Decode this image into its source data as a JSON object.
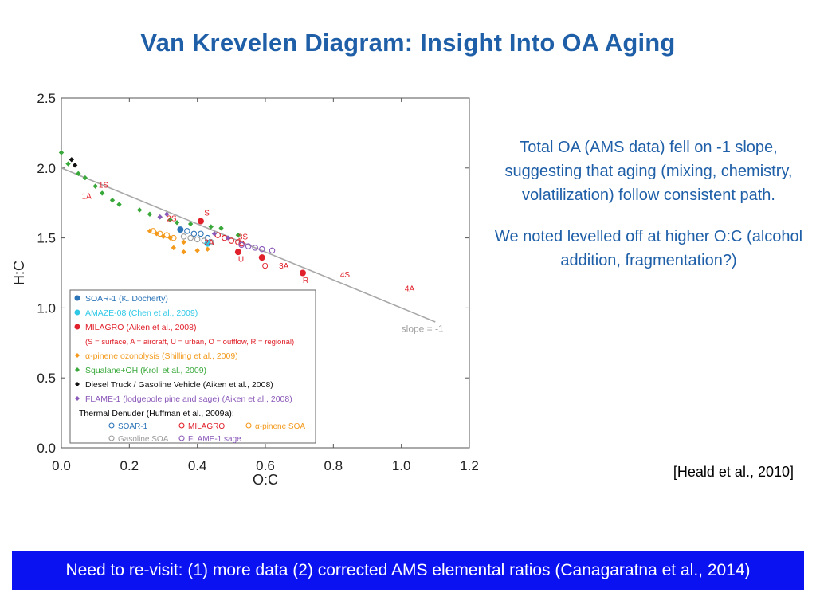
{
  "slide": {
    "title": "Van Krevelen Diagram: Insight Into OA Aging",
    "notes": [
      "Total OA (AMS data) fell on -1 slope, suggesting that aging (mixing, chemistry, volatilization) follow consistent path.",
      "We noted levelled off at higher O:C (alcohol addition, fragmentation?)"
    ],
    "citation": "[Heald et al., 2010]",
    "banner": "Need to re-visit: (1) more data (2) corrected AMS elemental ratios (Canagaratna et al., 2014)"
  },
  "chart_data": {
    "type": "scatter",
    "xlabel": "O:C",
    "ylabel": "H:C",
    "xlim": [
      0.0,
      1.2
    ],
    "ylim": [
      0.0,
      2.5
    ],
    "x_ticks": [
      "0.0",
      "0.2",
      "0.4",
      "0.6",
      "0.8",
      "1.0",
      "1.2"
    ],
    "y_ticks": [
      "0.0",
      "0.5",
      "1.0",
      "1.5",
      "2.0",
      "2.5"
    ],
    "reference_line": {
      "label": "slope = -1",
      "from": [
        0.0,
        2.0
      ],
      "to": [
        1.1,
        0.9
      ],
      "color": "#a8a8a8"
    },
    "legend_position": "bottom-left",
    "series": [
      {
        "name": "SOAR-1 (K. Docherty)",
        "color": "#2c74b8",
        "marker": "filled-circle",
        "points": [
          [
            0.35,
            1.56
          ]
        ]
      },
      {
        "name": "AMAZE-08 (Chen et al., 2009)",
        "color": "#2ec8e6",
        "marker": "filled-circle",
        "points": [
          [
            0.43,
            1.46
          ]
        ]
      },
      {
        "name": "MILAGRO (Aiken et al., 2008)",
        "color": "#e0202a",
        "marker": "filled-circle",
        "points": [
          [
            0.41,
            1.62
          ],
          [
            0.52,
            1.4
          ],
          [
            0.59,
            1.36
          ],
          [
            0.71,
            1.25
          ]
        ]
      },
      {
        "name": "(S = surface, A = aircraft, U = urban, O = outflow, R = regional)",
        "color": "#e0202a",
        "marker": "none",
        "points": []
      },
      {
        "name": "α-pinene ozonolysis (Shilling et al., 2009)",
        "color": "#f39a1c",
        "marker": "filled-diamond",
        "points": [
          [
            0.26,
            1.55
          ],
          [
            0.28,
            1.53
          ],
          [
            0.3,
            1.51
          ],
          [
            0.32,
            1.5
          ],
          [
            0.36,
            1.47
          ],
          [
            0.33,
            1.43
          ],
          [
            0.36,
            1.4
          ],
          [
            0.4,
            1.41
          ],
          [
            0.43,
            1.42
          ]
        ]
      },
      {
        "name": "Squalane+OH (Kroll et al., 2009)",
        "color": "#39a83a",
        "marker": "filled-diamond",
        "points": [
          [
            0.0,
            2.11
          ],
          [
            0.02,
            2.03
          ],
          [
            0.05,
            1.96
          ],
          [
            0.07,
            1.93
          ],
          [
            0.1,
            1.87
          ],
          [
            0.12,
            1.82
          ],
          [
            0.15,
            1.77
          ],
          [
            0.17,
            1.74
          ],
          [
            0.23,
            1.7
          ],
          [
            0.26,
            1.67
          ],
          [
            0.29,
            1.65
          ],
          [
            0.32,
            1.63
          ],
          [
            0.34,
            1.61
          ],
          [
            0.38,
            1.6
          ],
          [
            0.44,
            1.58
          ],
          [
            0.47,
            1.57
          ],
          [
            0.52,
            1.52
          ]
        ]
      },
      {
        "name": "Diesel Truck / Gasoline Vehicle (Aiken et al., 2008)",
        "color": "#111111",
        "marker": "filled-diamond",
        "points": [
          [
            0.03,
            2.06
          ],
          [
            0.04,
            2.02
          ]
        ]
      },
      {
        "name": "FLAME-1 (lodgepole pine and sage) (Aiken et al., 2008)",
        "color": "#8a58b8",
        "marker": "filled-diamond",
        "points": [
          [
            0.29,
            1.65
          ],
          [
            0.31,
            1.67
          ],
          [
            0.45,
            1.53
          ],
          [
            0.49,
            1.5
          ]
        ]
      },
      {
        "name": "Thermal Denuder (Huffman et al., 2009a):",
        "color": "#000000",
        "marker": "none",
        "points": []
      }
    ],
    "thermal_denuder": [
      {
        "name": "SOAR-1",
        "color": "#2c74b8",
        "marker": "open-circle",
        "points": [
          [
            0.37,
            1.55
          ],
          [
            0.39,
            1.53
          ],
          [
            0.41,
            1.53
          ],
          [
            0.43,
            1.5
          ],
          [
            0.44,
            1.47
          ]
        ]
      },
      {
        "name": "MILAGRO",
        "color": "#e0202a",
        "marker": "open-circle",
        "points": [
          [
            0.46,
            1.52
          ],
          [
            0.48,
            1.5
          ],
          [
            0.5,
            1.48
          ],
          [
            0.52,
            1.47
          ],
          [
            0.53,
            1.46
          ]
        ]
      },
      {
        "name": "α-pinene SOA",
        "color": "#f39a1c",
        "marker": "open-circle",
        "points": [
          [
            0.27,
            1.55
          ],
          [
            0.29,
            1.53
          ],
          [
            0.31,
            1.52
          ],
          [
            0.33,
            1.5
          ]
        ]
      },
      {
        "name": "Gasoline SOA",
        "color": "#9a9a9a",
        "marker": "open-circle",
        "points": [
          [
            0.36,
            1.51
          ],
          [
            0.38,
            1.5
          ],
          [
            0.4,
            1.49
          ],
          [
            0.42,
            1.48
          ],
          [
            0.44,
            1.47
          ]
        ]
      },
      {
        "name": "FLAME-1 sage",
        "color": "#8a58b8",
        "marker": "open-circle",
        "points": [
          [
            0.53,
            1.45
          ],
          [
            0.55,
            1.44
          ],
          [
            0.57,
            1.43
          ],
          [
            0.59,
            1.42
          ],
          [
            0.62,
            1.41
          ]
        ]
      }
    ],
    "annotations": [
      {
        "text": "1S",
        "x": 0.11,
        "y": 1.86,
        "color": "#e0202a"
      },
      {
        "text": "1A",
        "x": 0.06,
        "y": 1.78,
        "color": "#e0202a"
      },
      {
        "text": "2S",
        "x": 0.31,
        "y": 1.62,
        "color": "#e0202a"
      },
      {
        "text": "S",
        "x": 0.42,
        "y": 1.66,
        "color": "#e0202a"
      },
      {
        "text": "2A",
        "x": 0.42,
        "y": 1.45,
        "color": "#e0202a"
      },
      {
        "text": "3S",
        "x": 0.52,
        "y": 1.49,
        "color": "#e0202a"
      },
      {
        "text": "U",
        "x": 0.52,
        "y": 1.33,
        "color": "#e0202a"
      },
      {
        "text": "O",
        "x": 0.59,
        "y": 1.28,
        "color": "#e0202a"
      },
      {
        "text": "3A",
        "x": 0.64,
        "y": 1.28,
        "color": "#e0202a"
      },
      {
        "text": "R",
        "x": 0.71,
        "y": 1.18,
        "color": "#e0202a"
      },
      {
        "text": "4S",
        "x": 0.82,
        "y": 1.22,
        "color": "#e0202a"
      },
      {
        "text": "4A",
        "x": 1.01,
        "y": 1.12,
        "color": "#e0202a"
      }
    ]
  }
}
